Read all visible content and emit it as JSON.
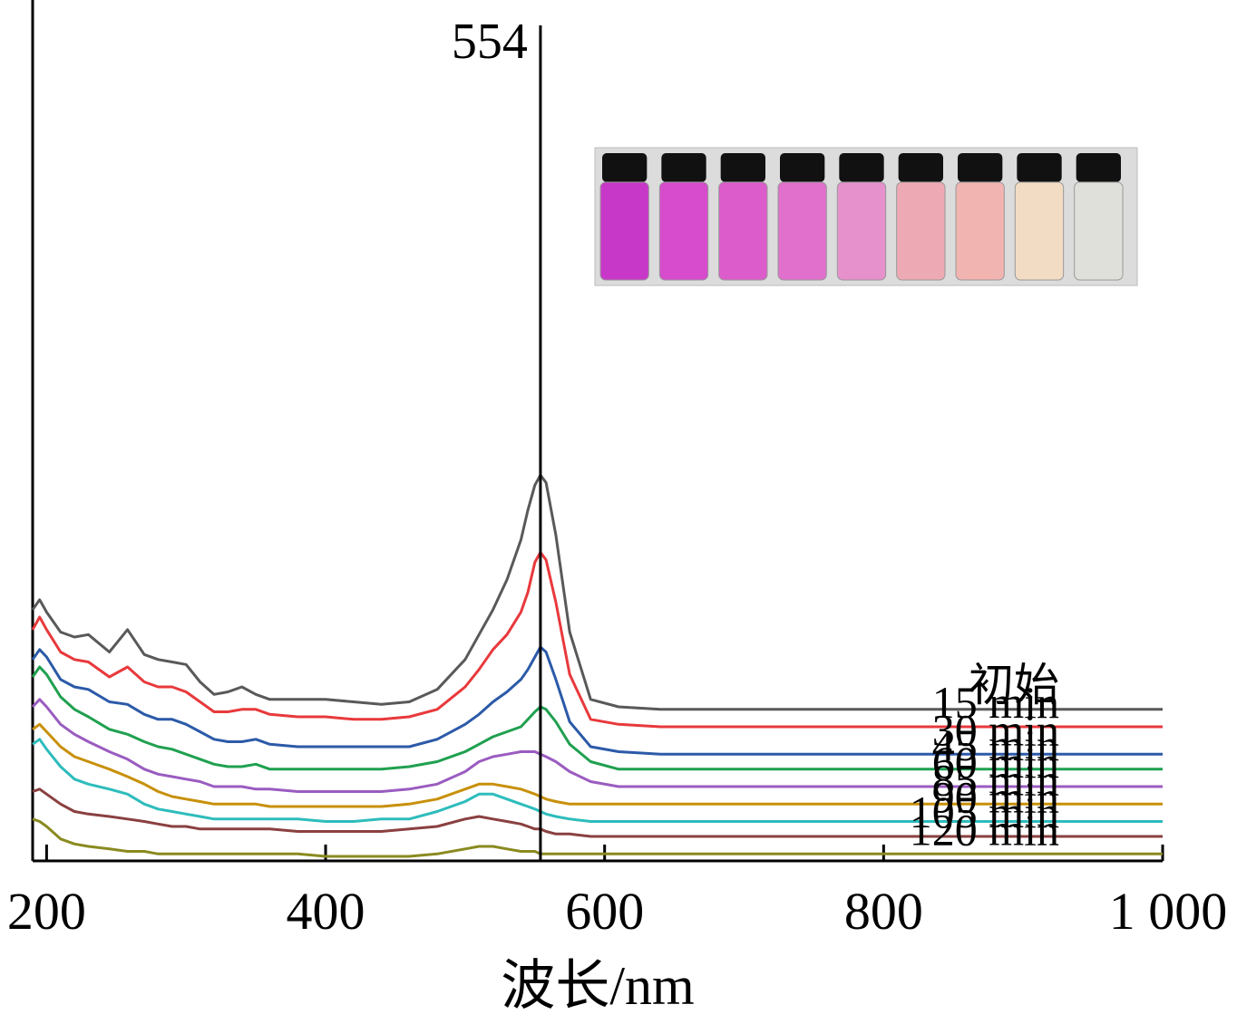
{
  "chart_data": {
    "type": "line",
    "xlabel": "波长/nm",
    "ylabel": "",
    "xlim": [
      190,
      1000
    ],
    "x_ticks": [
      200,
      400,
      600,
      800,
      1000
    ],
    "x_tick_labels": [
      "200",
      "400",
      "600",
      "800",
      "1 000"
    ],
    "grid": false,
    "legend": "none",
    "annotation": {
      "text": "554",
      "x": 554
    },
    "colors": [
      "#595959",
      "#e8393c",
      "#2c5aa8",
      "#20a050",
      "#9a5cc0",
      "#c8900a",
      "#2ebcbc",
      "#8a4040",
      "#8a8a20"
    ],
    "series": [
      {
        "name": "初始",
        "color": "#595959",
        "x": [
          190,
          195,
          200,
          210,
          220,
          230,
          245,
          258,
          270,
          280,
          290,
          300,
          310,
          320,
          330,
          340,
          350,
          360,
          380,
          400,
          420,
          440,
          460,
          480,
          500,
          510,
          520,
          530,
          540,
          545,
          550,
          554,
          558,
          565,
          575,
          590,
          610,
          640,
          700,
          800,
          900,
          1000
        ],
        "values": [
          8.7,
          9.1,
          8.6,
          7.8,
          7.6,
          7.7,
          7.0,
          7.9,
          6.9,
          6.7,
          6.6,
          6.5,
          5.8,
          5.3,
          5.4,
          5.6,
          5.3,
          5.1,
          5.1,
          5.1,
          5.0,
          4.9,
          5.0,
          5.5,
          6.7,
          7.7,
          8.7,
          9.9,
          11.5,
          12.7,
          13.7,
          14.1,
          13.8,
          11.7,
          7.8,
          5.1,
          4.8,
          4.7,
          4.7,
          4.7,
          4.7,
          4.7
        ]
      },
      {
        "name": "15 min",
        "color": "#e8393c",
        "x": [
          190,
          195,
          200,
          210,
          220,
          230,
          245,
          258,
          270,
          280,
          290,
          300,
          310,
          320,
          330,
          340,
          350,
          360,
          380,
          400,
          420,
          440,
          460,
          480,
          500,
          510,
          520,
          530,
          540,
          545,
          550,
          554,
          558,
          565,
          575,
          590,
          610,
          640,
          700,
          800,
          900,
          1000
        ],
        "values": [
          7.9,
          8.4,
          7.9,
          7.0,
          6.7,
          6.6,
          6.0,
          6.4,
          5.8,
          5.6,
          5.6,
          5.4,
          5.0,
          4.6,
          4.6,
          4.7,
          4.7,
          4.5,
          4.4,
          4.4,
          4.3,
          4.3,
          4.4,
          4.7,
          5.6,
          6.3,
          7.1,
          7.7,
          8.6,
          9.4,
          10.6,
          11.0,
          10.7,
          9.0,
          6.1,
          4.3,
          4.1,
          4.0,
          4.0,
          4.0,
          4.0,
          4.0
        ]
      },
      {
        "name": "30 min",
        "color": "#2c5aa8",
        "x": [
          190,
          195,
          200,
          210,
          220,
          230,
          245,
          258,
          270,
          280,
          290,
          300,
          310,
          320,
          330,
          340,
          350,
          360,
          380,
          400,
          420,
          440,
          460,
          480,
          500,
          510,
          520,
          530,
          540,
          545,
          550,
          554,
          558,
          565,
          575,
          590,
          610,
          640,
          700,
          800,
          900,
          1000
        ],
        "values": [
          6.7,
          7.1,
          6.8,
          5.9,
          5.6,
          5.5,
          5.0,
          4.9,
          4.5,
          4.3,
          4.3,
          4.1,
          3.8,
          3.5,
          3.4,
          3.4,
          3.5,
          3.3,
          3.2,
          3.2,
          3.2,
          3.2,
          3.2,
          3.5,
          4.1,
          4.5,
          5.0,
          5.4,
          5.9,
          6.3,
          6.8,
          7.2,
          7.0,
          5.9,
          4.2,
          3.2,
          3.0,
          2.9,
          2.9,
          2.9,
          2.9,
          2.9
        ]
      },
      {
        "name": "45 min",
        "color": "#20a050",
        "x": [
          190,
          195,
          200,
          210,
          220,
          230,
          245,
          258,
          270,
          280,
          290,
          300,
          310,
          320,
          330,
          340,
          350,
          360,
          380,
          400,
          420,
          440,
          460,
          480,
          500,
          510,
          520,
          530,
          540,
          545,
          550,
          554,
          558,
          565,
          575,
          590,
          610,
          640,
          700,
          800,
          900,
          1000
        ],
        "values": [
          6.0,
          6.4,
          6.1,
          5.2,
          4.7,
          4.4,
          3.9,
          3.7,
          3.4,
          3.2,
          3.1,
          2.9,
          2.7,
          2.5,
          2.4,
          2.4,
          2.5,
          2.3,
          2.3,
          2.3,
          2.3,
          2.3,
          2.4,
          2.6,
          3.0,
          3.3,
          3.6,
          3.8,
          4.0,
          4.3,
          4.6,
          4.8,
          4.7,
          4.2,
          3.3,
          2.6,
          2.3,
          2.3,
          2.3,
          2.3,
          2.3,
          2.3
        ]
      },
      {
        "name": "60 min",
        "color": "#9a5cc0",
        "x": [
          190,
          195,
          200,
          210,
          220,
          230,
          245,
          258,
          270,
          280,
          290,
          300,
          310,
          320,
          330,
          340,
          350,
          360,
          380,
          400,
          420,
          440,
          460,
          480,
          500,
          510,
          520,
          530,
          540,
          545,
          550,
          554,
          558,
          565,
          575,
          590,
          610,
          640,
          700,
          800,
          900,
          1000
        ],
        "values": [
          4.8,
          5.1,
          4.8,
          4.1,
          3.7,
          3.4,
          3.0,
          2.7,
          2.3,
          2.1,
          2.0,
          1.9,
          1.8,
          1.6,
          1.6,
          1.6,
          1.5,
          1.5,
          1.4,
          1.4,
          1.4,
          1.4,
          1.5,
          1.7,
          2.2,
          2.6,
          2.8,
          2.9,
          3.0,
          3.0,
          3.0,
          2.9,
          2.8,
          2.6,
          2.2,
          1.8,
          1.6,
          1.6,
          1.6,
          1.6,
          1.6,
          1.6
        ]
      },
      {
        "name": "85 min",
        "color": "#c8900a",
        "x": [
          190,
          195,
          200,
          210,
          220,
          230,
          245,
          258,
          270,
          280,
          290,
          300,
          310,
          320,
          330,
          340,
          350,
          360,
          380,
          400,
          420,
          440,
          460,
          480,
          500,
          510,
          520,
          530,
          540,
          545,
          550,
          554,
          558,
          565,
          575,
          590,
          610,
          640,
          700,
          800,
          900,
          1000
        ],
        "values": [
          3.9,
          4.1,
          3.8,
          3.2,
          2.8,
          2.6,
          2.3,
          2.0,
          1.7,
          1.4,
          1.2,
          1.1,
          1.0,
          0.9,
          0.9,
          0.9,
          0.9,
          0.8,
          0.8,
          0.8,
          0.8,
          0.8,
          0.9,
          1.1,
          1.5,
          1.7,
          1.7,
          1.6,
          1.5,
          1.4,
          1.3,
          1.2,
          1.1,
          1.0,
          0.9,
          0.9,
          0.9,
          0.9,
          0.9,
          0.9,
          0.9,
          0.9
        ]
      },
      {
        "name": "90 min",
        "color": "#2ebcbc",
        "x": [
          190,
          195,
          200,
          210,
          220,
          230,
          245,
          258,
          270,
          280,
          290,
          300,
          310,
          320,
          330,
          340,
          350,
          360,
          380,
          400,
          420,
          440,
          460,
          480,
          500,
          510,
          520,
          530,
          540,
          545,
          550,
          554,
          558,
          565,
          575,
          590,
          610,
          640,
          700,
          800,
          900,
          1000
        ],
        "values": [
          3.3,
          3.5,
          3.1,
          2.4,
          1.9,
          1.7,
          1.5,
          1.3,
          0.9,
          0.7,
          0.6,
          0.5,
          0.4,
          0.3,
          0.3,
          0.3,
          0.3,
          0.3,
          0.3,
          0.2,
          0.2,
          0.3,
          0.3,
          0.6,
          1.0,
          1.3,
          1.3,
          1.1,
          0.9,
          0.8,
          0.7,
          0.6,
          0.5,
          0.4,
          0.3,
          0.2,
          0.2,
          0.2,
          0.2,
          0.2,
          0.2,
          0.2
        ]
      },
      {
        "name": "105 min",
        "color": "#8a4040",
        "x": [
          190,
          195,
          200,
          210,
          220,
          230,
          245,
          258,
          270,
          280,
          290,
          300,
          310,
          320,
          330,
          340,
          350,
          360,
          380,
          400,
          420,
          440,
          460,
          480,
          500,
          510,
          520,
          530,
          540,
          545,
          550,
          554,
          558,
          565,
          575,
          590,
          610,
          640,
          700,
          800,
          900,
          1000
        ],
        "values": [
          1.4,
          1.5,
          1.3,
          0.9,
          0.6,
          0.5,
          0.4,
          0.3,
          0.2,
          0.1,
          0.0,
          0.0,
          -0.1,
          -0.1,
          -0.1,
          -0.1,
          -0.1,
          -0.1,
          -0.2,
          -0.2,
          -0.2,
          -0.2,
          -0.1,
          0.0,
          0.3,
          0.4,
          0.3,
          0.2,
          0.1,
          0.0,
          -0.1,
          -0.1,
          -0.2,
          -0.3,
          -0.3,
          -0.4,
          -0.4,
          -0.4,
          -0.4,
          -0.4,
          -0.4,
          -0.4
        ]
      },
      {
        "name": "120 min",
        "color": "#8a8a20",
        "x": [
          190,
          195,
          200,
          210,
          220,
          230,
          245,
          258,
          270,
          280,
          290,
          300,
          310,
          320,
          330,
          340,
          350,
          360,
          380,
          400,
          420,
          440,
          460,
          480,
          500,
          510,
          520,
          530,
          540,
          545,
          550,
          554,
          558,
          565,
          575,
          590,
          610,
          640,
          700,
          800,
          900,
          1000
        ],
        "values": [
          0.3,
          0.2,
          0.0,
          -0.5,
          -0.7,
          -0.8,
          -0.9,
          -1.0,
          -1.0,
          -1.1,
          -1.1,
          -1.1,
          -1.1,
          -1.1,
          -1.1,
          -1.1,
          -1.1,
          -1.1,
          -1.1,
          -1.2,
          -1.2,
          -1.2,
          -1.2,
          -1.1,
          -0.9,
          -0.8,
          -0.8,
          -0.9,
          -1.0,
          -1.0,
          -1.0,
          -1.1,
          -1.1,
          -1.1,
          -1.1,
          -1.1,
          -1.1,
          -1.1,
          -1.1,
          -1.1,
          -1.1,
          -1.1
        ]
      }
    ]
  },
  "inset_photo": {
    "vial_colors": [
      "#c838c8",
      "#d64ccc",
      "#dc5ccc",
      "#e070cc",
      "#e690cc",
      "#eeaab4",
      "#f2b4b0",
      "#f2dcc4",
      "#e0e0da"
    ]
  }
}
